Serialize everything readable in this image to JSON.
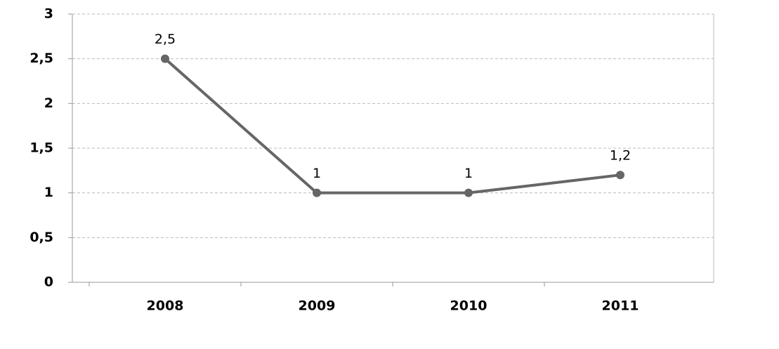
{
  "chart_data": {
    "type": "line",
    "categories": [
      "2008",
      "2009",
      "2010",
      "2011"
    ],
    "values": [
      2.5,
      1,
      1,
      1.2
    ],
    "value_labels": [
      "2,5",
      "1",
      "1",
      "1,2"
    ],
    "color": "#666666",
    "ylim": [
      0,
      3
    ],
    "yticks": [
      0,
      {
        "value": 0.5,
        "label": "0,5"
      },
      1,
      {
        "value": 1.5,
        "label": "1,5"
      },
      2,
      {
        "value": 2.5,
        "label": "2,5"
      },
      3
    ],
    "grid": true
  }
}
